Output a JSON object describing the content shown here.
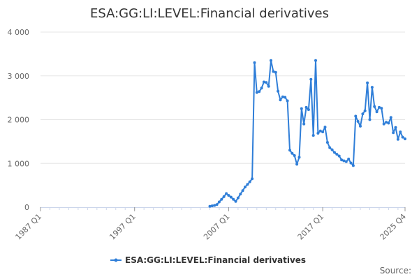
{
  "chart_data": {
    "type": "line",
    "title": "ESA:GG:LI:LEVEL:Financial derivatives",
    "xlabel": "",
    "ylabel": "",
    "ylim": [
      0,
      4000
    ],
    "y_ticks": [
      0,
      1000,
      2000,
      3000,
      4000
    ],
    "y_tick_labels": [
      "0",
      "1 000",
      "2 000",
      "3 000",
      "4 000"
    ],
    "x_range": [
      "1987 Q1",
      "2025 Q4"
    ],
    "x_ticks": [
      "1987 Q1",
      "1997 Q1",
      "2007 Q1",
      "2017 Q1",
      "2025 Q4"
    ],
    "grid": "horizontal",
    "legend_position": "bottom",
    "color": "#2f7ed8",
    "credits": "Source:",
    "series": [
      {
        "name": "ESA:GG:LI:LEVEL:Financial derivatives",
        "x": [
          "2005 Q1",
          "2005 Q2",
          "2005 Q3",
          "2005 Q4",
          "2006 Q1",
          "2006 Q2",
          "2006 Q3",
          "2006 Q4",
          "2007 Q1",
          "2007 Q2",
          "2007 Q3",
          "2007 Q4",
          "2008 Q1",
          "2008 Q2",
          "2008 Q3",
          "2008 Q4",
          "2009 Q1",
          "2009 Q2",
          "2009 Q3",
          "2009 Q4",
          "2010 Q1",
          "2010 Q2",
          "2010 Q3",
          "2010 Q4",
          "2011 Q1",
          "2011 Q2",
          "2011 Q3",
          "2011 Q4",
          "2012 Q1",
          "2012 Q2",
          "2012 Q3",
          "2012 Q4",
          "2013 Q1",
          "2013 Q2",
          "2013 Q3",
          "2013 Q4",
          "2014 Q1",
          "2014 Q2",
          "2014 Q3",
          "2014 Q4",
          "2015 Q1",
          "2015 Q2",
          "2015 Q3",
          "2015 Q4",
          "2016 Q1",
          "2016 Q2",
          "2016 Q3",
          "2016 Q4",
          "2017 Q1",
          "2017 Q2",
          "2017 Q3",
          "2017 Q4",
          "2018 Q1",
          "2018 Q2",
          "2018 Q3",
          "2018 Q4",
          "2019 Q1",
          "2019 Q2",
          "2019 Q3",
          "2019 Q4",
          "2020 Q1",
          "2020 Q2",
          "2020 Q3",
          "2020 Q4",
          "2021 Q1",
          "2021 Q2",
          "2021 Q3",
          "2021 Q4",
          "2022 Q1",
          "2022 Q2",
          "2022 Q3",
          "2022 Q4",
          "2023 Q1",
          "2023 Q2",
          "2023 Q3",
          "2023 Q4",
          "2024 Q1",
          "2024 Q2",
          "2024 Q3",
          "2024 Q4",
          "2025 Q1",
          "2025 Q2",
          "2025 Q3",
          "2025 Q4"
        ],
        "values": [
          20,
          30,
          40,
          60,
          120,
          180,
          240,
          310,
          270,
          230,
          180,
          130,
          210,
          300,
          380,
          460,
          520,
          580,
          650,
          3300,
          2620,
          2640,
          2720,
          2860,
          2850,
          2760,
          3350,
          3100,
          3080,
          2650,
          2450,
          2520,
          2510,
          2430,
          1300,
          1230,
          1180,
          980,
          1140,
          2250,
          1900,
          2280,
          2230,
          2920,
          1640,
          3350,
          1690,
          1740,
          1720,
          1830,
          1480,
          1360,
          1310,
          1250,
          1210,
          1170,
          1080,
          1060,
          1040,
          1100,
          1010,
          950,
          2080,
          1960,
          1850,
          2130,
          2200,
          2840,
          2000,
          2740,
          2300,
          2180,
          2280,
          2260,
          1900,
          1940,
          1920,
          2050,
          1700,
          1820,
          1550,
          1720,
          1600,
          1560
        ]
      }
    ]
  }
}
